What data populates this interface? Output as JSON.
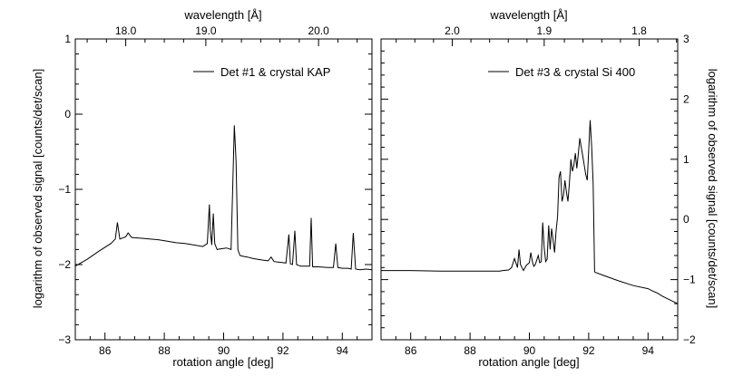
{
  "chart_data": [
    {
      "type": "line",
      "panel": "left",
      "title": "",
      "xlabel": "rotation angle [deg]",
      "ylabel": "logarithm of observed signal [counts/det/scan]",
      "xlim": [
        85,
        95
      ],
      "ylim": [
        -3,
        1
      ],
      "x_ticks": [
        86,
        88,
        90,
        92,
        94
      ],
      "x_tick_labels": [
        "86",
        "88",
        "90",
        "92",
        "94"
      ],
      "y_ticks": [
        -3,
        -2,
        -1,
        0,
        1
      ],
      "y_tick_labels": [
        "−3",
        "−2",
        "−1",
        "0",
        "1"
      ],
      "top_axis": {
        "label": "wavelength [Å]",
        "ticks": [
          {
            "x": 86.7,
            "label": "18.0"
          },
          {
            "x": 89.4,
            "label": "19.0"
          },
          {
            "x": 93.2,
            "label": "20.0"
          }
        ]
      },
      "legend": {
        "label": "Det #1 & crystal KAP",
        "placement": "top-right"
      },
      "series": [
        {
          "name": "Det #1 & crystal KAP",
          "x": [
            85.0,
            85.4,
            85.8,
            86.2,
            86.35,
            86.42,
            86.5,
            86.7,
            86.78,
            86.9,
            87.2,
            87.5,
            87.8,
            88.1,
            88.4,
            88.7,
            89.0,
            89.3,
            89.45,
            89.52,
            89.55,
            89.6,
            89.65,
            89.7,
            89.78,
            89.9,
            90.1,
            90.25,
            90.32,
            90.36,
            90.42,
            90.48,
            90.55,
            90.65,
            90.8,
            91.0,
            91.3,
            91.5,
            91.6,
            91.7,
            91.9,
            92.1,
            92.2,
            92.25,
            92.32,
            92.4,
            92.46,
            92.52,
            92.6,
            92.75,
            92.9,
            92.95,
            93.0,
            93.05,
            93.2,
            93.5,
            93.7,
            93.78,
            93.85,
            94.0,
            94.2,
            94.3,
            94.37,
            94.45,
            94.6,
            94.8,
            95.0
          ],
          "values": [
            -2.02,
            -1.93,
            -1.82,
            -1.72,
            -1.66,
            -1.44,
            -1.66,
            -1.63,
            -1.58,
            -1.64,
            -1.65,
            -1.66,
            -1.67,
            -1.69,
            -1.71,
            -1.72,
            -1.74,
            -1.76,
            -1.72,
            -1.2,
            -1.55,
            -1.74,
            -1.32,
            -1.72,
            -1.8,
            -1.79,
            -1.78,
            -1.8,
            -0.75,
            -0.15,
            -0.62,
            -1.8,
            -1.88,
            -1.89,
            -1.9,
            -1.92,
            -1.94,
            -1.95,
            -1.9,
            -1.96,
            -1.97,
            -1.98,
            -1.6,
            -1.99,
            -2.0,
            -1.55,
            -2.0,
            -2.01,
            -2.02,
            -2.02,
            -2.02,
            -1.38,
            -2.03,
            -2.03,
            -2.03,
            -2.04,
            -2.04,
            -1.72,
            -2.04,
            -2.05,
            -2.05,
            -2.06,
            -1.58,
            -2.06,
            -2.07,
            -2.06,
            -2.07
          ]
        }
      ]
    },
    {
      "type": "line",
      "panel": "right",
      "title": "",
      "xlabel": "rotation angle [deg]",
      "ylabel": "logarithm of observed signal [counts/det/scan]",
      "xlim": [
        85,
        95
      ],
      "ylim": [
        -2,
        3
      ],
      "x_ticks": [
        86,
        88,
        90,
        92,
        94
      ],
      "x_tick_labels": [
        "86",
        "88",
        "90",
        "92",
        "94"
      ],
      "y_ticks": [
        -2,
        -1,
        0,
        1,
        2,
        3
      ],
      "y_tick_labels": [
        "−2",
        "−1",
        "0",
        "1",
        "2",
        "3"
      ],
      "top_axis": {
        "label": "wavelength [Å]",
        "ticks": [
          {
            "x": 87.4,
            "label": "2.0"
          },
          {
            "x": 90.5,
            "label": "1.9"
          },
          {
            "x": 93.7,
            "label": "1.8"
          }
        ]
      },
      "legend": {
        "label": "Det #3 & crystal Si 400",
        "placement": "top-right"
      },
      "series": [
        {
          "name": "Det #3 & crystal Si 400",
          "x": [
            85.0,
            86.0,
            87.0,
            88.0,
            89.0,
            89.1,
            89.3,
            89.4,
            89.5,
            89.6,
            89.65,
            89.7,
            89.75,
            89.8,
            89.9,
            90.0,
            90.05,
            90.1,
            90.15,
            90.2,
            90.3,
            90.35,
            90.4,
            90.45,
            90.5,
            90.55,
            90.6,
            90.65,
            90.7,
            90.75,
            90.8,
            90.85,
            90.9,
            90.95,
            91.0,
            91.05,
            91.1,
            91.15,
            91.2,
            91.25,
            91.3,
            91.35,
            91.4,
            91.45,
            91.5,
            91.55,
            91.6,
            91.65,
            91.7,
            91.75,
            91.8,
            91.85,
            91.9,
            91.95,
            92.0,
            92.05,
            92.1,
            92.15,
            92.2,
            92.22,
            92.5,
            93.0,
            93.5,
            94.0,
            94.2,
            94.3,
            94.5,
            95.0
          ],
          "values": [
            -0.85,
            -0.85,
            -0.86,
            -0.86,
            -0.86,
            -0.85,
            -0.84,
            -0.8,
            -0.65,
            -0.8,
            -0.5,
            -0.75,
            -0.8,
            -0.85,
            -0.76,
            -0.72,
            -0.55,
            -0.7,
            -0.78,
            -0.75,
            -0.6,
            -0.72,
            -0.7,
            -0.05,
            -0.48,
            -0.7,
            -0.66,
            -0.1,
            -0.5,
            -0.15,
            -0.35,
            -0.55,
            -0.2,
            0.05,
            0.7,
            0.8,
            0.3,
            0.4,
            0.65,
            0.45,
            0.3,
            0.6,
            1.0,
            0.8,
            0.9,
            1.1,
            0.85,
            1.1,
            1.35,
            1.2,
            1.05,
            0.9,
            0.75,
            0.65,
            1.15,
            1.65,
            1.2,
            0.6,
            -0.87,
            -0.88,
            -0.93,
            -1.02,
            -1.1,
            -1.15,
            -1.2,
            -1.22,
            -1.28,
            -1.4
          ]
        }
      ]
    }
  ]
}
